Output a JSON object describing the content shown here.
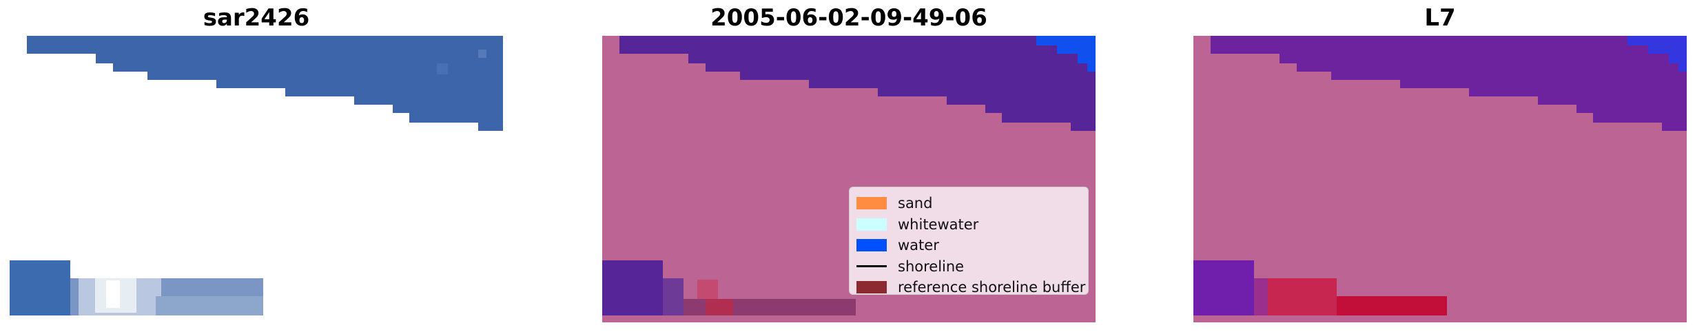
{
  "panels": [
    {
      "title": "sar2426"
    },
    {
      "title": "2005-06-02-09-49-06"
    },
    {
      "title": "L7"
    }
  ],
  "legend": {
    "items": [
      {
        "label": "sand",
        "color": "#ff8c40"
      },
      {
        "label": "whitewater",
        "color": "#ccffff"
      },
      {
        "label": "water",
        "color": "#0050ff"
      },
      {
        "label": "shoreline",
        "color": "#000000"
      },
      {
        "label": "reference shoreline buffer",
        "color": "#8b2a30"
      }
    ]
  }
}
